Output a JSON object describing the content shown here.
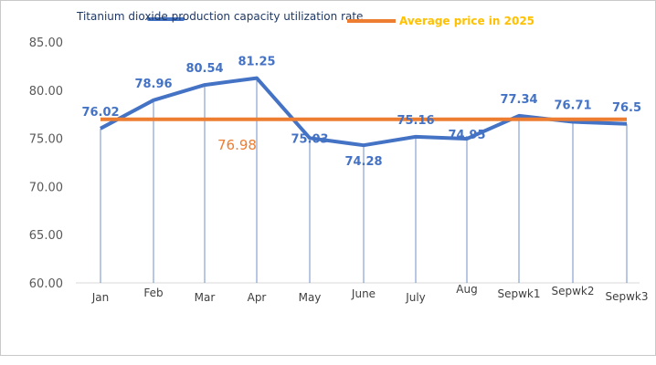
{
  "chart_data": {
    "type": "line",
    "categories": [
      "Jan",
      "Feb",
      "Mar",
      "Apr",
      "May",
      "June",
      "July",
      "Aug",
      "Sepwk1",
      "Sepwk2",
      "Sepwk3"
    ],
    "series": [
      {
        "name": "Titanium dioxide production capacity utilization rate",
        "values": [
          76.02,
          78.96,
          80.54,
          81.25,
          75.03,
          74.28,
          75.16,
          74.95,
          77.34,
          76.71,
          76.5
        ],
        "labels": [
          "76.02",
          "78.96",
          "80.54",
          "81.25",
          "75.03",
          "74.28",
          "75.16",
          "74.95",
          "77.34",
          "76.71",
          "76.5"
        ],
        "color": "#4472c4"
      },
      {
        "name": "Average price in 2025",
        "values": [
          76.98,
          76.98,
          76.98,
          76.98,
          76.98,
          76.98,
          76.98,
          76.98,
          76.98,
          76.98,
          76.98
        ],
        "label": "76.98",
        "color": "#ed7d31"
      }
    ],
    "yticks": [
      "60.00",
      "65.00",
      "70.00",
      "75.00",
      "80.00",
      "85.00"
    ],
    "ylim": [
      60,
      85
    ],
    "legend": "top-left",
    "drop_lines": true,
    "grid": false
  }
}
